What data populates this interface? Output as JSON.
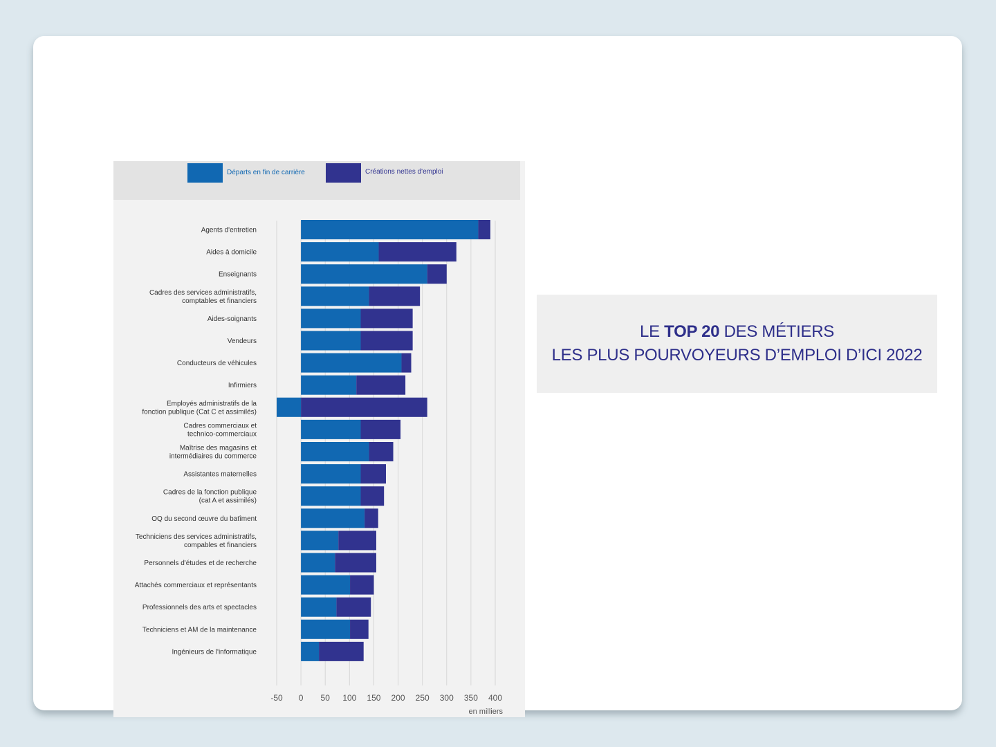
{
  "title": {
    "line1_prefix": "LE",
    "line1_strong": "TOP 20",
    "line1_suffix": "DES MÉTIERS",
    "line2": "LES PLUS POURVOYEURS D’EMPLOI D’ICI 2022"
  },
  "colors": {
    "departs": "#1168b2",
    "creations": "#31338f",
    "grid": "#d7d7d7"
  },
  "chart_data": {
    "type": "bar",
    "orientation": "horizontal",
    "stacked": true,
    "unit": "en milliers",
    "xlim": [
      -50,
      400
    ],
    "xticks": [
      -50,
      0,
      50,
      100,
      150,
      200,
      250,
      300,
      350,
      400
    ],
    "grid": true,
    "legend_position": "top",
    "categories": [
      "Agents d'entretien",
      "Aides à domicile",
      "Enseignants",
      "Cadres des services administratifs,\ncomptables et financiers",
      "Aides-soignants",
      "Vendeurs",
      "Conducteurs de véhicules",
      "Infirmiers",
      "Employés administratifs de la\nfonction publique (Cat C et assimilés)",
      "Cadres commerciaux et\ntechnico-commerciaux",
      "Maîtrise des magasins et\nintermédiaires du commerce",
      "Assistantes maternelles",
      "Cadres de la fonction publique\n(cat A et assimilés)",
      "OQ du second œuvre du batîment",
      "Techniciens des services administratifs,\ncompables et financiers",
      "Personnels d'études et de recherche",
      "Attachés commerciaux et représentants",
      "Professionnels des arts et spectacles",
      "Techniciens et AM de la maintenance",
      "Ingénieurs de l'informatique"
    ],
    "series": [
      {
        "name": "Départs en fin de carrière",
        "values": [
          365,
          160,
          260,
          140,
          123,
          123,
          207,
          114,
          -50,
          123,
          140,
          123,
          123,
          131,
          77,
          70,
          101,
          73,
          101,
          37
        ]
      },
      {
        "name": "Créations nettes d'emploi",
        "values": [
          25,
          160,
          40,
          105,
          107,
          107,
          20,
          101,
          260,
          82,
          50,
          52,
          48,
          28,
          78,
          85,
          49,
          71,
          38,
          92
        ]
      }
    ]
  }
}
